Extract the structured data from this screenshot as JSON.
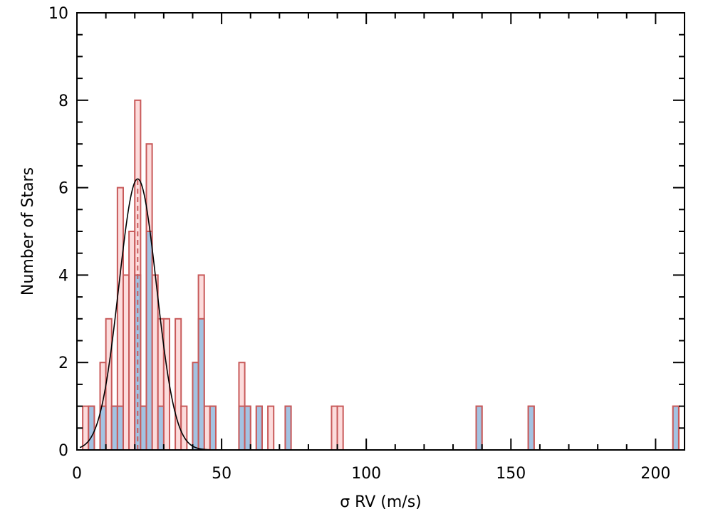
{
  "chart_data": {
    "type": "histogram",
    "title": "",
    "xlabel": "σ RV (m/s)",
    "ylabel": "Number of Stars",
    "xlim": [
      0,
      210
    ],
    "ylim": [
      0,
      10
    ],
    "x_ticks": [
      "0",
      "50",
      "100",
      "150",
      "200"
    ],
    "y_ticks": [
      "0",
      "2",
      "4",
      "6",
      "8",
      "10"
    ],
    "bin_width": 2,
    "colors": {
      "all_fill": "#fcdcdc",
      "all_edge": "#c85a5a",
      "subset_fill": "#a3c3e2",
      "curve": "#000000",
      "median_line": "#c85a5a"
    },
    "series": [
      {
        "style": "light red outlined bars",
        "bins": [
          {
            "x": 2,
            "y": 1
          },
          {
            "x": 4,
            "y": 1
          },
          {
            "x": 8,
            "y": 2
          },
          {
            "x": 10,
            "y": 3
          },
          {
            "x": 12,
            "y": 1
          },
          {
            "x": 14,
            "y": 6
          },
          {
            "x": 16,
            "y": 4
          },
          {
            "x": 18,
            "y": 5
          },
          {
            "x": 20,
            "y": 8
          },
          {
            "x": 22,
            "y": 1
          },
          {
            "x": 24,
            "y": 7
          },
          {
            "x": 26,
            "y": 4
          },
          {
            "x": 28,
            "y": 3
          },
          {
            "x": 30,
            "y": 3
          },
          {
            "x": 34,
            "y": 3
          },
          {
            "x": 36,
            "y": 1
          },
          {
            "x": 40,
            "y": 2
          },
          {
            "x": 42,
            "y": 4
          },
          {
            "x": 44,
            "y": 1
          },
          {
            "x": 46,
            "y": 1
          },
          {
            "x": 56,
            "y": 2
          },
          {
            "x": 58,
            "y": 1
          },
          {
            "x": 62,
            "y": 1
          },
          {
            "x": 66,
            "y": 1
          },
          {
            "x": 72,
            "y": 1
          },
          {
            "x": 88,
            "y": 1
          },
          {
            "x": 90,
            "y": 1
          },
          {
            "x": 138,
            "y": 1
          },
          {
            "x": 156,
            "y": 1
          },
          {
            "x": 206,
            "y": 1
          }
        ]
      },
      {
        "style": "blue filled bars",
        "bins": [
          {
            "x": 4,
            "y": 1
          },
          {
            "x": 8,
            "y": 1
          },
          {
            "x": 12,
            "y": 1
          },
          {
            "x": 14,
            "y": 1
          },
          {
            "x": 20,
            "y": 4
          },
          {
            "x": 22,
            "y": 1
          },
          {
            "x": 24,
            "y": 5
          },
          {
            "x": 28,
            "y": 1
          },
          {
            "x": 40,
            "y": 2
          },
          {
            "x": 42,
            "y": 3
          },
          {
            "x": 46,
            "y": 1
          },
          {
            "x": 56,
            "y": 1
          },
          {
            "x": 58,
            "y": 1
          },
          {
            "x": 62,
            "y": 1
          },
          {
            "x": 72,
            "y": 1
          },
          {
            "x": 138,
            "y": 1
          },
          {
            "x": 156,
            "y": 1
          },
          {
            "x": 206,
            "y": 1
          }
        ]
      }
    ],
    "gaussian_fit": {
      "mean": 21,
      "sigma": 6.5,
      "peak": 6.2,
      "x_range": [
        1,
        50
      ]
    },
    "median_line_x": 21
  }
}
